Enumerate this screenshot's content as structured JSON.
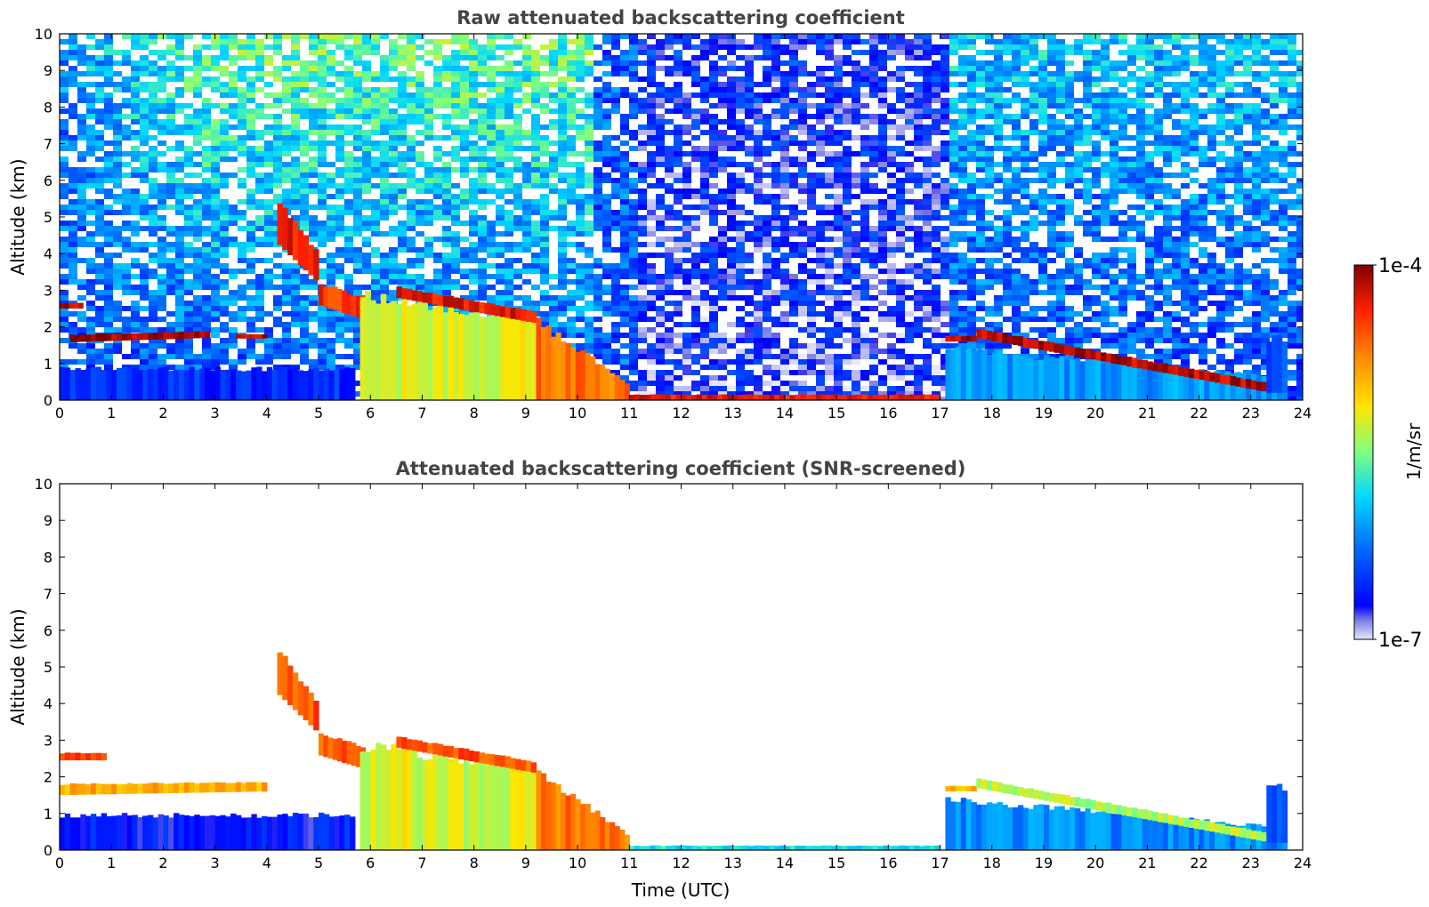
{
  "chart_data": [
    {
      "type": "heatmap",
      "title": "Raw attenuated backscattering coefficient",
      "xlabel": "",
      "ylabel": "Altitude (km)",
      "xlim": [
        0,
        24
      ],
      "ylim": [
        0,
        10
      ],
      "x_ticks": [
        "0",
        "1",
        "2",
        "3",
        "4",
        "5",
        "6",
        "7",
        "8",
        "9",
        "10",
        "11",
        "12",
        "13",
        "14",
        "15",
        "16",
        "17",
        "18",
        "19",
        "20",
        "21",
        "22",
        "23",
        "24"
      ],
      "y_ticks": [
        "0",
        "1",
        "2",
        "3",
        "4",
        "5",
        "6",
        "7",
        "8",
        "9",
        "10"
      ],
      "grid": false,
      "color_scale": "log",
      "noise": "strong",
      "features": [
        {
          "kind": "layer",
          "name": "cloud",
          "time": [
            0.0,
            0.45
          ],
          "alt_bottom": [
            2.5,
            2.5
          ],
          "alt_top": [
            2.65,
            2.65
          ],
          "level": 0.95
        },
        {
          "kind": "layer",
          "name": "cloud",
          "time": [
            0.2,
            2.9
          ],
          "alt_bottom": [
            1.58,
            1.7
          ],
          "alt_top": [
            1.78,
            1.88
          ],
          "level": 0.97
        },
        {
          "kind": "layer",
          "name": "cloud",
          "time": [
            3.4,
            4.0
          ],
          "alt_bottom": [
            1.68,
            1.68
          ],
          "alt_top": [
            1.8,
            1.8
          ],
          "level": 0.95
        },
        {
          "kind": "layer",
          "name": "boundary-layer",
          "time": [
            0.0,
            5.7
          ],
          "alt_bottom": [
            0.0,
            0.0
          ],
          "alt_top": [
            0.85,
            0.85
          ],
          "level": 0.15
        },
        {
          "kind": "layer",
          "name": "falling-streak",
          "time": [
            4.2,
            5.0
          ],
          "alt_bottom": [
            4.3,
            3.2
          ],
          "alt_top": [
            5.5,
            4.0
          ],
          "level": 0.9
        },
        {
          "kind": "layer",
          "name": "falling-streak",
          "time": [
            5.0,
            5.9
          ],
          "alt_bottom": [
            2.6,
            2.2
          ],
          "alt_top": [
            3.2,
            2.8
          ],
          "level": 0.86
        },
        {
          "kind": "layer",
          "name": "precipitation",
          "time": [
            5.8,
            9.2
          ],
          "alt_bottom": [
            0.0,
            0.0
          ],
          "alt_top": [
            2.8,
            2.3
          ],
          "level": 0.58
        },
        {
          "kind": "layer",
          "name": "cloud-top",
          "time": [
            6.5,
            9.2
          ],
          "alt_bottom": [
            2.8,
            2.1
          ],
          "alt_top": [
            3.1,
            2.4
          ],
          "level": 0.9
        },
        {
          "kind": "layer",
          "name": "precipitation",
          "time": [
            9.2,
            11.0
          ],
          "alt_bottom": [
            0.0,
            0.0
          ],
          "alt_top": [
            2.2,
            0.4
          ],
          "level": 0.78
        },
        {
          "kind": "layer",
          "name": "surface-layer",
          "time": [
            11.0,
            17.0
          ],
          "alt_bottom": [
            0.0,
            0.0
          ],
          "alt_top": [
            0.15,
            0.15
          ],
          "level": 0.9
        },
        {
          "kind": "layer",
          "name": "cloud",
          "time": [
            17.1,
            17.7
          ],
          "alt_bottom": [
            1.6,
            1.6
          ],
          "alt_top": [
            1.75,
            1.75
          ],
          "level": 0.95
        },
        {
          "kind": "layer",
          "name": "aerosol",
          "time": [
            17.1,
            23.7
          ],
          "alt_bottom": [
            0.0,
            0.0
          ],
          "alt_top": [
            1.4,
            0.6
          ],
          "level": 0.3
        },
        {
          "kind": "layer",
          "name": "cloud",
          "time": [
            17.7,
            23.4
          ],
          "alt_bottom": [
            1.7,
            0.2
          ],
          "alt_top": [
            1.95,
            0.45
          ],
          "level": 0.95
        },
        {
          "kind": "layer",
          "name": "aerosol",
          "time": [
            23.3,
            23.7
          ],
          "alt_bottom": [
            0.2,
            0.2
          ],
          "alt_top": [
            1.7,
            1.7
          ],
          "level": 0.2
        }
      ]
    },
    {
      "type": "heatmap",
      "title": "Attenuated backscattering coefficient (SNR-screened)",
      "xlabel": "Time (UTC)",
      "ylabel": "Altitude (km)",
      "xlim": [
        0,
        24
      ],
      "ylim": [
        0,
        10
      ],
      "x_ticks": [
        "0",
        "1",
        "2",
        "3",
        "4",
        "5",
        "6",
        "7",
        "8",
        "9",
        "10",
        "11",
        "12",
        "13",
        "14",
        "15",
        "16",
        "17",
        "18",
        "19",
        "20",
        "21",
        "22",
        "23",
        "24"
      ],
      "y_ticks": [
        "0",
        "1",
        "2",
        "3",
        "4",
        "5",
        "6",
        "7",
        "8",
        "9",
        "10"
      ],
      "grid": false,
      "color_scale": "log",
      "noise": "none",
      "features": [
        {
          "kind": "layer",
          "name": "cloud",
          "time": [
            0.0,
            0.9
          ],
          "alt_bottom": [
            2.45,
            2.45
          ],
          "alt_top": [
            2.65,
            2.65
          ],
          "level": 0.85
        },
        {
          "kind": "layer",
          "name": "cloud",
          "time": [
            0.0,
            4.0
          ],
          "alt_bottom": [
            1.5,
            1.6
          ],
          "alt_top": [
            1.8,
            1.85
          ],
          "level": 0.7
        },
        {
          "kind": "layer",
          "name": "boundary-layer",
          "time": [
            0.0,
            5.7
          ],
          "alt_bottom": [
            0.0,
            0.0
          ],
          "alt_top": [
            0.95,
            0.95
          ],
          "level": 0.12
        },
        {
          "kind": "layer",
          "name": "falling-streak",
          "time": [
            4.2,
            5.0
          ],
          "alt_bottom": [
            4.3,
            3.2
          ],
          "alt_top": [
            5.5,
            4.0
          ],
          "level": 0.82
        },
        {
          "kind": "layer",
          "name": "falling-streak",
          "time": [
            5.0,
            5.9
          ],
          "alt_bottom": [
            2.6,
            2.2
          ],
          "alt_top": [
            3.2,
            2.8
          ],
          "level": 0.8
        },
        {
          "kind": "layer",
          "name": "precipitation",
          "time": [
            5.8,
            9.2
          ],
          "alt_bottom": [
            0.0,
            0.0
          ],
          "alt_top": [
            2.8,
            2.3
          ],
          "level": 0.58
        },
        {
          "kind": "layer",
          "name": "cloud-top",
          "time": [
            6.5,
            9.2
          ],
          "alt_bottom": [
            2.8,
            2.1
          ],
          "alt_top": [
            3.1,
            2.4
          ],
          "level": 0.82
        },
        {
          "kind": "layer",
          "name": "precipitation",
          "time": [
            9.2,
            11.0
          ],
          "alt_bottom": [
            0.0,
            0.0
          ],
          "alt_top": [
            2.2,
            0.4
          ],
          "level": 0.78
        },
        {
          "kind": "layer",
          "name": "surface-layer",
          "time": [
            11.0,
            17.0
          ],
          "alt_bottom": [
            0.0,
            0.0
          ],
          "alt_top": [
            0.12,
            0.12
          ],
          "level": 0.4
        },
        {
          "kind": "layer",
          "name": "cloud",
          "time": [
            17.1,
            17.7
          ],
          "alt_bottom": [
            1.6,
            1.6
          ],
          "alt_top": [
            1.75,
            1.75
          ],
          "level": 0.7
        },
        {
          "kind": "layer",
          "name": "aerosol",
          "time": [
            17.1,
            23.7
          ],
          "alt_bottom": [
            0.0,
            0.0
          ],
          "alt_top": [
            1.4,
            0.6
          ],
          "level": 0.28
        },
        {
          "kind": "layer",
          "name": "cloud",
          "time": [
            17.7,
            23.4
          ],
          "alt_bottom": [
            1.7,
            0.2
          ],
          "alt_top": [
            1.95,
            0.45
          ],
          "level": 0.55
        },
        {
          "kind": "layer",
          "name": "aerosol",
          "time": [
            23.3,
            23.7
          ],
          "alt_bottom": [
            0.2,
            0.2
          ],
          "alt_top": [
            1.7,
            1.7
          ],
          "level": 0.2
        }
      ]
    }
  ],
  "colorbar": {
    "label": "1/m/sr",
    "min_label": "1e-7",
    "max_label": "1e-4",
    "scale": "log",
    "range": [
      1e-07,
      0.0001
    ],
    "colormap": "jet"
  },
  "colors": {
    "title": "#444444",
    "axis": "#000000",
    "background": "#ffffff"
  }
}
